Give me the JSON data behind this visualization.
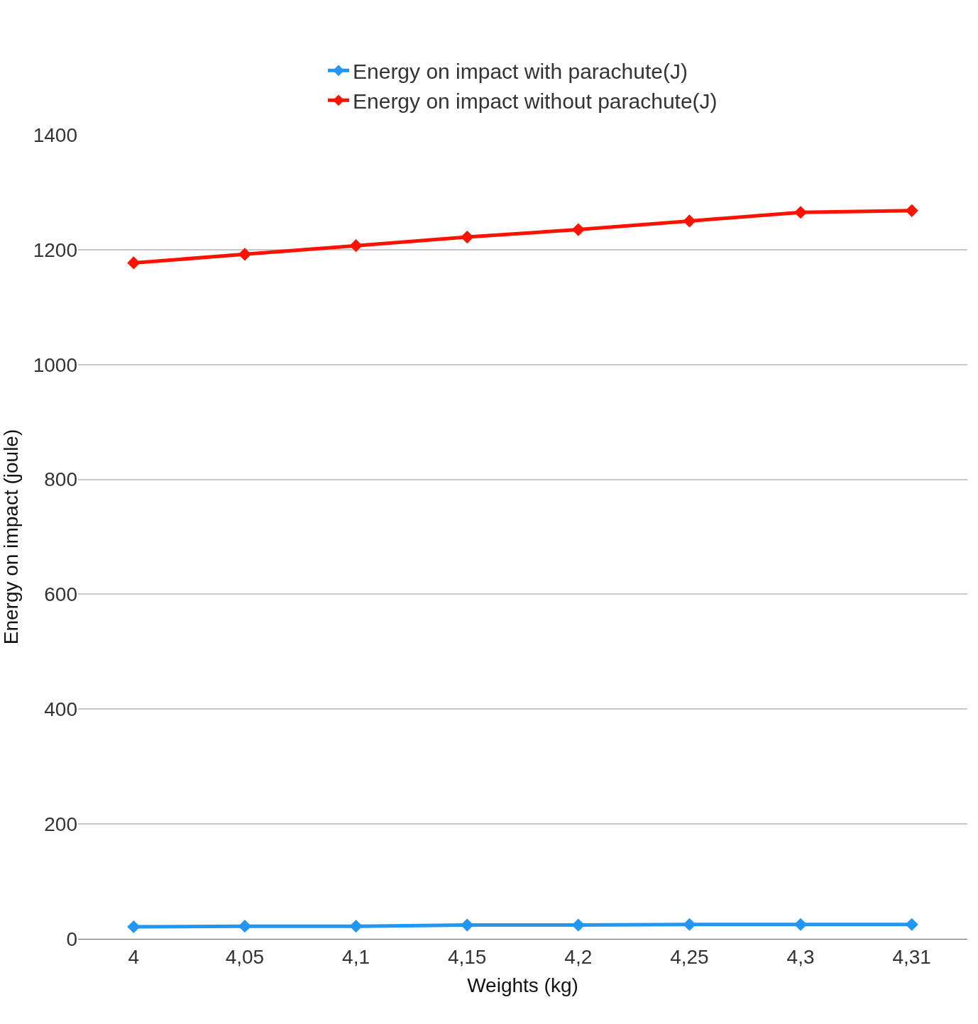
{
  "chart_data": {
    "type": "line",
    "xlabel": "Weights (kg)",
    "ylabel": "Energy on impact (joule)",
    "categories": [
      "4",
      "4,05",
      "4,1",
      "4,15",
      "4,2",
      "4,25",
      "4,3",
      "4,31"
    ],
    "series": [
      {
        "name": "Energy on impact with parachute(J)",
        "color": "#2196f3",
        "values": [
          21,
          22,
          22,
          24,
          24,
          25,
          25,
          25
        ]
      },
      {
        "name": "Energy on impact without parachute(J)",
        "color": "#ff1100",
        "values": [
          1177,
          1192,
          1207,
          1222,
          1235,
          1250,
          1265,
          1268
        ]
      }
    ],
    "ylim": [
      0,
      1400
    ],
    "yticks": [
      0,
      200,
      400,
      600,
      800,
      1000,
      1200,
      1400
    ],
    "grid": "y",
    "legend": "top",
    "marker": "diamond",
    "line_style": "solid"
  }
}
